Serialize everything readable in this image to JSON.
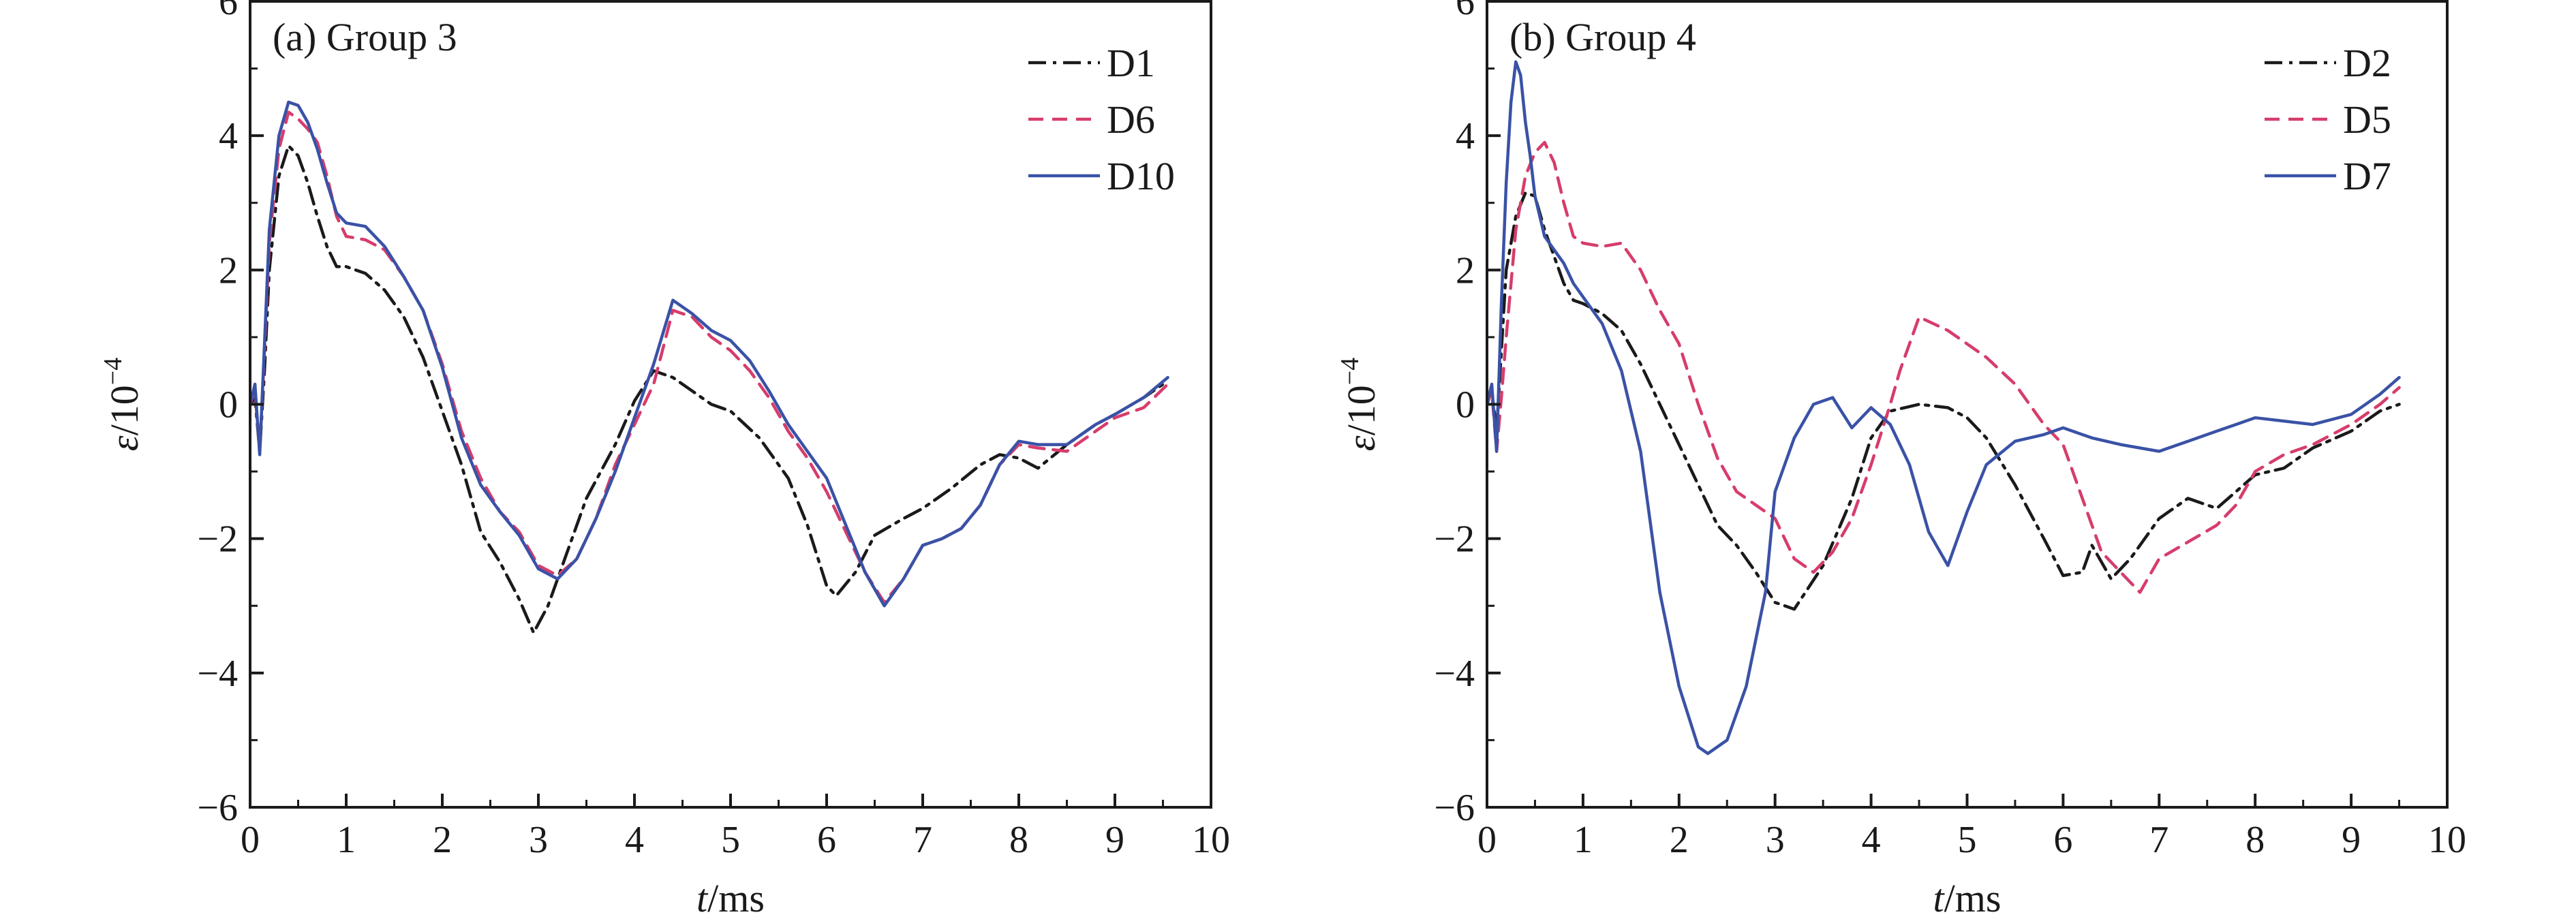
{
  "chart_data": [
    {
      "type": "line",
      "panel_label": "(a) Group 3",
      "xlabel_var": "t",
      "xlabel_unit": "/ms",
      "ylabel_var": "ε",
      "ylabel_unit": "/10",
      "ylabel_exp": "−4",
      "xlim": [
        0,
        10
      ],
      "ylim": [
        -6,
        6
      ],
      "x_ticks": [
        0,
        1,
        2,
        3,
        4,
        5,
        6,
        7,
        8,
        9,
        10
      ],
      "y_ticks": [
        -6,
        -4,
        -2,
        0,
        2,
        4,
        6
      ],
      "y_tick_labels": [
        "−6",
        "−4",
        "−2",
        "0",
        "2",
        "4",
        "6"
      ],
      "legend_position": "top-right",
      "series": [
        {
          "name": "D1",
          "color": "#1a1a1a",
          "dash": "dashdot",
          "x": [
            0,
            0.05,
            0.1,
            0.15,
            0.2,
            0.3,
            0.4,
            0.5,
            0.6,
            0.7,
            0.8,
            0.9,
            1.0,
            1.2,
            1.4,
            1.6,
            1.8,
            2.0,
            2.2,
            2.4,
            2.6,
            2.8,
            2.95,
            3.1,
            3.3,
            3.5,
            3.8,
            4.0,
            4.2,
            4.4,
            4.6,
            4.8,
            5.0,
            5.3,
            5.6,
            5.8,
            6.0,
            6.1,
            6.3,
            6.5,
            6.8,
            7.0,
            7.3,
            7.6,
            7.8,
            8.0,
            8.2,
            8.5,
            8.8,
            9.0,
            9.3,
            9.55
          ],
          "y": [
            0.0,
            0.1,
            -0.7,
            0.5,
            2.0,
            3.4,
            3.85,
            3.7,
            3.3,
            2.8,
            2.35,
            2.05,
            2.05,
            1.95,
            1.7,
            1.3,
            0.7,
            -0.1,
            -0.9,
            -1.9,
            -2.35,
            -2.9,
            -3.4,
            -3.0,
            -2.2,
            -1.4,
            -0.6,
            0.05,
            0.5,
            0.4,
            0.2,
            0.0,
            -0.1,
            -0.5,
            -1.1,
            -1.8,
            -2.7,
            -2.85,
            -2.5,
            -1.95,
            -1.7,
            -1.55,
            -1.25,
            -0.9,
            -0.75,
            -0.8,
            -0.95,
            -0.6,
            -0.3,
            -0.15,
            0.1,
            0.35
          ]
        },
        {
          "name": "D6",
          "color": "#d63d6b",
          "dash": "dashed",
          "x": [
            0,
            0.05,
            0.1,
            0.15,
            0.2,
            0.3,
            0.4,
            0.5,
            0.6,
            0.7,
            0.8,
            0.9,
            1.0,
            1.2,
            1.4,
            1.6,
            1.8,
            2.0,
            2.2,
            2.4,
            2.6,
            2.8,
            3.0,
            3.2,
            3.4,
            3.6,
            3.8,
            4.0,
            4.2,
            4.4,
            4.6,
            4.8,
            5.0,
            5.2,
            5.4,
            5.6,
            5.8,
            6.0,
            6.2,
            6.4,
            6.6,
            6.8,
            7.0,
            7.2,
            7.4,
            7.6,
            7.8,
            8.0,
            8.2,
            8.5,
            8.8,
            9.0,
            9.3,
            9.55
          ],
          "y": [
            0.0,
            0.2,
            -0.7,
            0.8,
            2.4,
            3.8,
            4.35,
            4.25,
            4.1,
            3.9,
            3.4,
            2.8,
            2.5,
            2.45,
            2.3,
            1.9,
            1.4,
            0.6,
            -0.4,
            -1.1,
            -1.6,
            -1.9,
            -2.4,
            -2.55,
            -2.3,
            -1.7,
            -0.9,
            -0.3,
            0.3,
            1.4,
            1.3,
            1.0,
            0.8,
            0.5,
            0.1,
            -0.4,
            -0.8,
            -1.3,
            -1.9,
            -2.5,
            -2.95,
            -2.6,
            -2.1,
            -2.0,
            -1.85,
            -1.5,
            -0.9,
            -0.6,
            -0.65,
            -0.7,
            -0.4,
            -0.2,
            -0.05,
            0.3
          ]
        },
        {
          "name": "D10",
          "color": "#3a52a6",
          "dash": "solid",
          "x": [
            0,
            0.05,
            0.1,
            0.15,
            0.2,
            0.3,
            0.4,
            0.5,
            0.6,
            0.7,
            0.8,
            0.9,
            1.0,
            1.2,
            1.4,
            1.6,
            1.8,
            2.0,
            2.2,
            2.4,
            2.6,
            2.8,
            3.0,
            3.2,
            3.4,
            3.6,
            3.8,
            4.0,
            4.2,
            4.4,
            4.6,
            4.8,
            5.0,
            5.2,
            5.4,
            5.6,
            5.8,
            6.0,
            6.2,
            6.4,
            6.6,
            6.8,
            7.0,
            7.2,
            7.4,
            7.6,
            7.8,
            8.0,
            8.2,
            8.5,
            8.8,
            9.0,
            9.3,
            9.55
          ],
          "y": [
            0.0,
            0.3,
            -0.75,
            0.9,
            2.6,
            4.0,
            4.5,
            4.45,
            4.2,
            3.8,
            3.3,
            2.85,
            2.7,
            2.65,
            2.35,
            1.9,
            1.4,
            0.55,
            -0.5,
            -1.2,
            -1.6,
            -1.95,
            -2.45,
            -2.6,
            -2.3,
            -1.7,
            -1.0,
            -0.2,
            0.6,
            1.55,
            1.35,
            1.1,
            0.95,
            0.65,
            0.2,
            -0.3,
            -0.7,
            -1.1,
            -1.8,
            -2.5,
            -3.0,
            -2.6,
            -2.1,
            -2.0,
            -1.85,
            -1.5,
            -0.9,
            -0.55,
            -0.6,
            -0.6,
            -0.3,
            -0.15,
            0.1,
            0.4
          ]
        }
      ]
    },
    {
      "type": "line",
      "panel_label": "(b) Group 4",
      "xlabel_var": "t",
      "xlabel_unit": "/ms",
      "ylabel_var": "ε",
      "ylabel_unit": "/10",
      "ylabel_exp": "−4",
      "xlim": [
        0,
        10
      ],
      "ylim": [
        -6,
        6
      ],
      "x_ticks": [
        0,
        1,
        2,
        3,
        4,
        5,
        6,
        7,
        8,
        9,
        10
      ],
      "y_ticks": [
        -6,
        -4,
        -2,
        0,
        2,
        4,
        6
      ],
      "y_tick_labels": [
        "−6",
        "−4",
        "−2",
        "0",
        "2",
        "4",
        "6"
      ],
      "legend_position": "top-right",
      "series": [
        {
          "name": "D2",
          "color": "#1a1a1a",
          "dash": "dashdot",
          "x": [
            0,
            0.05,
            0.1,
            0.15,
            0.2,
            0.3,
            0.4,
            0.5,
            0.6,
            0.7,
            0.8,
            0.9,
            1.0,
            1.2,
            1.4,
            1.6,
            1.8,
            2.0,
            2.2,
            2.4,
            2.6,
            2.8,
            3.0,
            3.2,
            3.5,
            3.8,
            4.0,
            4.2,
            4.5,
            4.8,
            5.0,
            5.2,
            5.5,
            5.8,
            6.0,
            6.2,
            6.3,
            6.5,
            6.7,
            7.0,
            7.3,
            7.6,
            7.8,
            8.0,
            8.3,
            8.6,
            9.0,
            9.3,
            9.5
          ],
          "y": [
            0.0,
            0.2,
            -0.4,
            0.8,
            2.0,
            2.8,
            3.15,
            3.1,
            2.6,
            2.2,
            1.8,
            1.55,
            1.5,
            1.35,
            1.1,
            0.6,
            0.0,
            -0.6,
            -1.2,
            -1.8,
            -2.1,
            -2.5,
            -2.95,
            -3.05,
            -2.4,
            -1.4,
            -0.5,
            -0.1,
            0.0,
            -0.05,
            -0.2,
            -0.5,
            -1.2,
            -2.0,
            -2.55,
            -2.5,
            -2.1,
            -2.6,
            -2.3,
            -1.7,
            -1.4,
            -1.55,
            -1.3,
            -1.05,
            -0.95,
            -0.65,
            -0.4,
            -0.1,
            0.0
          ]
        },
        {
          "name": "D5",
          "color": "#d63d6b",
          "dash": "dashed",
          "x": [
            0,
            0.05,
            0.1,
            0.15,
            0.2,
            0.3,
            0.4,
            0.5,
            0.6,
            0.7,
            0.8,
            0.9,
            1.0,
            1.2,
            1.4,
            1.6,
            1.8,
            2.0,
            2.2,
            2.4,
            2.6,
            2.8,
            3.0,
            3.2,
            3.4,
            3.6,
            3.8,
            4.0,
            4.2,
            4.3,
            4.5,
            4.8,
            5.0,
            5.2,
            5.5,
            5.8,
            6.0,
            6.2,
            6.4,
            6.6,
            6.8,
            7.0,
            7.3,
            7.6,
            7.8,
            8.0,
            8.3,
            8.6,
            9.0,
            9.3,
            9.5
          ],
          "y": [
            0.0,
            0.2,
            -0.7,
            0.1,
            1.0,
            2.6,
            3.4,
            3.75,
            3.9,
            3.6,
            3.0,
            2.5,
            2.4,
            2.35,
            2.4,
            2.0,
            1.4,
            0.9,
            0.0,
            -0.8,
            -1.3,
            -1.5,
            -1.7,
            -2.3,
            -2.5,
            -2.2,
            -1.7,
            -0.9,
            0.0,
            0.5,
            1.3,
            1.1,
            0.9,
            0.7,
            0.3,
            -0.3,
            -0.6,
            -1.4,
            -2.2,
            -2.5,
            -2.8,
            -2.3,
            -2.05,
            -1.8,
            -1.5,
            -1.0,
            -0.75,
            -0.6,
            -0.3,
            0.0,
            0.25
          ]
        },
        {
          "name": "D7",
          "color": "#3a52a6",
          "dash": "solid",
          "x": [
            0,
            0.05,
            0.1,
            0.15,
            0.2,
            0.25,
            0.3,
            0.35,
            0.4,
            0.45,
            0.5,
            0.6,
            0.7,
            0.8,
            0.9,
            1.0,
            1.2,
            1.4,
            1.6,
            1.8,
            2.0,
            2.2,
            2.3,
            2.5,
            2.7,
            2.9,
            3.0,
            3.2,
            3.4,
            3.6,
            3.8,
            4.0,
            4.2,
            4.4,
            4.6,
            4.8,
            5.0,
            5.2,
            5.5,
            5.8,
            6.0,
            6.3,
            6.6,
            7.0,
            7.3,
            7.6,
            7.8,
            8.0,
            8.3,
            8.6,
            9.0,
            9.3,
            9.5
          ],
          "y": [
            0.0,
            0.3,
            -0.7,
            1.5,
            3.3,
            4.5,
            5.1,
            4.9,
            4.2,
            3.7,
            3.1,
            2.5,
            2.3,
            2.1,
            1.8,
            1.6,
            1.2,
            0.5,
            -0.7,
            -2.8,
            -4.2,
            -5.1,
            -5.2,
            -5.0,
            -4.2,
            -2.8,
            -1.3,
            -0.5,
            0.0,
            0.1,
            -0.35,
            -0.05,
            -0.3,
            -0.9,
            -1.9,
            -2.4,
            -1.6,
            -0.9,
            -0.55,
            -0.45,
            -0.35,
            -0.5,
            -0.6,
            -0.7,
            -0.55,
            -0.4,
            -0.3,
            -0.2,
            -0.25,
            -0.3,
            -0.15,
            0.15,
            0.4
          ]
        }
      ]
    }
  ]
}
